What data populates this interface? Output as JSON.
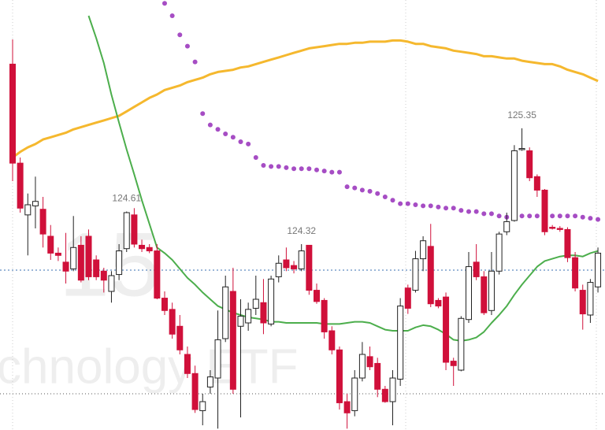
{
  "chart_data": {
    "type": "candlestick",
    "watermark_symbol": "15",
    "watermark_name": "chnology ETF",
    "ylim": [
      122.668,
      126.49
    ],
    "up_color": "#ffffff",
    "down_color": "#d0103a",
    "outline_color": "#222222",
    "labeled_highs": [
      15,
      38,
      67
    ],
    "open": [
      125.92,
      125.04,
      124.58,
      124.66,
      124.63,
      124.39,
      124.24,
      124.16,
      124.1,
      124.31,
      124.39,
      124.18,
      124.08,
      123.9,
      124.05,
      124.28,
      124.58,
      124.31,
      124.29,
      124.26,
      123.84,
      123.74,
      123.59,
      123.34,
      123.17,
      122.84,
      123.05,
      123.13,
      123.48,
      123.9,
      123.59,
      123.62,
      123.75,
      123.8,
      123.61,
      124.03,
      124.18,
      124.13,
      124.1,
      124.31,
      123.91,
      123.82,
      123.55,
      123.38,
      122.92,
      122.84,
      123.13,
      123.32,
      123.26,
      123.03,
      122.92,
      123.12,
      123.93,
      123.91,
      124.19,
      124.3,
      123.82,
      123.85,
      123.28,
      123.2,
      123.65,
      124.16,
      124.03,
      123.73,
      124.08,
      124.43,
      124.53,
      125.16,
      125.15,
      124.92,
      124.8,
      124.47,
      124.46,
      124.45,
      124.2,
      123.91,
      123.69,
      123.94
    ],
    "high": [
      126.14,
      125.09,
      124.77,
      124.92,
      124.74,
      124.49,
      124.29,
      124.42,
      124.57,
      124.39,
      124.45,
      124.22,
      124.11,
      124.08,
      124.32,
      124.61,
      124.64,
      124.36,
      124.32,
      124.32,
      123.9,
      123.8,
      123.69,
      123.41,
      123.24,
      122.99,
      123.2,
      123.73,
      124.04,
      124.11,
      123.83,
      123.8,
      124.04,
      124.01,
      124.04,
      124.22,
      124.29,
      124.17,
      124.32,
      124.31,
      123.97,
      123.84,
      123.59,
      123.41,
      122.99,
      123.2,
      123.45,
      123.41,
      123.31,
      123.06,
      123.2,
      123.84,
      123.96,
      124.26,
      124.39,
      124.5,
      123.84,
      123.89,
      123.31,
      123.68,
      124.25,
      124.32,
      124.08,
      124.25,
      124.43,
      124.6,
      125.2,
      125.35,
      125.18,
      124.94,
      124.81,
      124.49,
      124.48,
      124.47,
      124.25,
      123.96,
      124.01,
      124.29
    ],
    "low": [
      124.88,
      124.6,
      124.22,
      124.46,
      124.29,
      124.18,
      124.17,
      123.97,
      124.08,
      123.98,
      124.0,
      124.0,
      123.89,
      123.8,
      124.0,
      124.25,
      124.29,
      124.25,
      124.24,
      123.83,
      123.69,
      123.48,
      123.34,
      123.13,
      122.82,
      122.71,
      122.99,
      122.68,
      123.45,
      122.99,
      122.78,
      123.55,
      123.69,
      123.52,
      123.59,
      123.98,
      124.08,
      124.06,
      124.08,
      123.87,
      123.79,
      123.48,
      123.34,
      122.85,
      122.68,
      122.79,
      123.1,
      123.2,
      122.96,
      122.91,
      122.71,
      123.06,
      123.7,
      123.89,
      124.08,
      123.76,
      123.75,
      123.2,
      123.06,
      123.19,
      123.62,
      124.0,
      123.69,
      123.69,
      124.05,
      124.4,
      124.52,
      125.15,
      124.88,
      124.74,
      124.4,
      124.45,
      124.43,
      124.16,
      123.9,
      123.56,
      123.62,
      123.89
    ],
    "close": [
      125.04,
      124.64,
      124.67,
      124.7,
      124.41,
      124.24,
      124.22,
      124.08,
      124.29,
      124.0,
      124.03,
      124.03,
      124.0,
      124.04,
      124.26,
      124.6,
      124.32,
      124.28,
      124.26,
      123.84,
      123.73,
      123.52,
      123.38,
      123.17,
      122.85,
      122.92,
      123.14,
      123.47,
      123.94,
      123.03,
      123.68,
      123.74,
      123.83,
      123.62,
      124.01,
      124.15,
      124.11,
      124.1,
      124.26,
      123.91,
      123.81,
      123.54,
      123.38,
      122.91,
      122.82,
      123.13,
      123.34,
      123.23,
      123.03,
      122.92,
      123.13,
      123.77,
      123.75,
      124.19,
      124.35,
      123.79,
      123.77,
      123.27,
      123.24,
      123.66,
      124.12,
      124.03,
      123.71,
      124.08,
      124.41,
      124.52,
      125.15,
      125.17,
      124.91,
      124.8,
      124.43,
      124.46,
      124.45,
      124.2,
      123.93,
      123.7,
      123.98,
      124.24
    ],
    "overlays": [
      {
        "style": "line",
        "color": "#f5b82e",
        "width": 3,
        "values": [
          125.09,
          125.14,
          125.18,
          125.21,
          125.25,
          125.27,
          125.29,
          125.31,
          125.34,
          125.36,
          125.38,
          125.4,
          125.42,
          125.44,
          125.46,
          125.5,
          125.54,
          125.58,
          125.62,
          125.65,
          125.69,
          125.71,
          125.73,
          125.76,
          125.78,
          125.8,
          125.83,
          125.85,
          125.86,
          125.87,
          125.89,
          125.9,
          125.92,
          125.94,
          125.96,
          125.98,
          126.0,
          126.02,
          126.04,
          126.06,
          126.07,
          126.08,
          126.09,
          126.1,
          126.1,
          126.11,
          126.11,
          126.12,
          126.12,
          126.12,
          126.13,
          126.13,
          126.12,
          126.1,
          126.1,
          126.08,
          126.07,
          126.06,
          126.04,
          126.03,
          126.02,
          126.01,
          125.99,
          125.99,
          125.98,
          125.97,
          125.97,
          125.95,
          125.94,
          125.93,
          125.92,
          125.92,
          125.9,
          125.87,
          125.85,
          125.83,
          125.8,
          125.77
        ]
      },
      {
        "style": "line",
        "color": "#4cae4c",
        "width": 2,
        "values": [
          null,
          null,
          null,
          null,
          null,
          null,
          null,
          null,
          null,
          null,
          126.35,
          126.15,
          125.93,
          125.65,
          125.4,
          125.16,
          124.94,
          124.71,
          124.5,
          124.29,
          124.24,
          124.18,
          124.1,
          124.02,
          123.96,
          123.89,
          123.83,
          123.77,
          123.74,
          123.71,
          123.69,
          123.67,
          123.66,
          123.65,
          123.63,
          123.63,
          123.62,
          123.62,
          123.62,
          123.62,
          123.62,
          123.61,
          123.61,
          123.61,
          123.62,
          123.63,
          123.63,
          123.62,
          123.59,
          123.56,
          123.55,
          123.55,
          123.55,
          123.58,
          123.6,
          123.59,
          123.56,
          123.52,
          123.47,
          123.46,
          123.47,
          123.49,
          123.54,
          123.62,
          123.69,
          123.77,
          123.87,
          123.96,
          124.04,
          124.12,
          124.17,
          124.19,
          124.21,
          124.22,
          124.22,
          124.21,
          124.24,
          124.26
        ]
      },
      {
        "style": "dots",
        "color": "#a64dc4",
        "width": 3,
        "values": [
          null,
          null,
          null,
          null,
          null,
          null,
          null,
          null,
          null,
          null,
          null,
          null,
          null,
          null,
          null,
          null,
          null,
          null,
          null,
          null,
          126.46,
          126.35,
          126.18,
          126.08,
          125.94,
          125.48,
          125.38,
          125.34,
          125.3,
          125.27,
          125.23,
          125.21,
          125.09,
          125.02,
          125.01,
          125.01,
          125.0,
          124.99,
          124.99,
          124.99,
          124.98,
          124.97,
          124.96,
          124.96,
          124.83,
          124.82,
          124.8,
          124.79,
          124.77,
          124.74,
          124.71,
          124.68,
          124.68,
          124.67,
          124.66,
          124.66,
          124.65,
          124.64,
          124.64,
          124.62,
          124.61,
          124.61,
          124.59,
          124.59,
          124.57,
          124.56,
          124.57,
          124.57,
          124.57,
          124.57,
          124.58,
          124.57,
          124.57,
          124.57,
          124.57,
          124.56,
          124.55,
          124.54
        ]
      }
    ]
  }
}
